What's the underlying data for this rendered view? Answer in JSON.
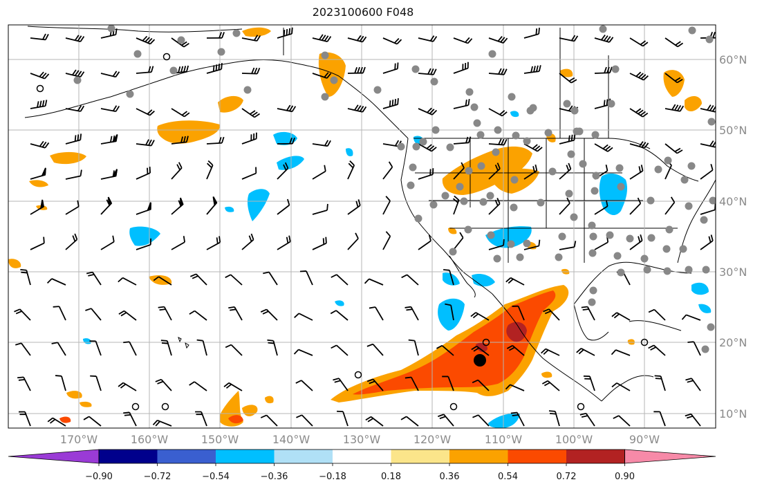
{
  "title": "2023100600 F048",
  "lat_labels": [
    "60°N",
    "50°N",
    "40°N",
    "30°N",
    "20°N",
    "10°N"
  ],
  "lon_labels": [
    "170°W",
    "160°W",
    "150°W",
    "140°W",
    "130°W",
    "120°W",
    "110°W",
    "100°W",
    "90°W"
  ],
  "colorbar": {
    "ticks": [
      "−0.90",
      "−0.72",
      "−0.54",
      "−0.36",
      "−0.18",
      "0.18",
      "0.36",
      "0.54",
      "0.72",
      "0.90"
    ],
    "colors": [
      "#9a3bd6",
      "#00008c",
      "#3a5fd0",
      "#00bfff",
      "#b0e0f6",
      "#ffffff",
      "#fbe58a",
      "#fba200",
      "#fb4a00",
      "#b22222",
      "#f78aa8"
    ]
  },
  "colors": {
    "orange": "#fba200",
    "red_orange": "#fb4a00",
    "dark_red": "#b22222",
    "yellow": "#fbe58a",
    "blue": "#00bfff",
    "light_blue": "#b0e0f6",
    "grid": "#b5b5b5",
    "station_marker": "#888888",
    "storm_center": "#000000"
  }
}
